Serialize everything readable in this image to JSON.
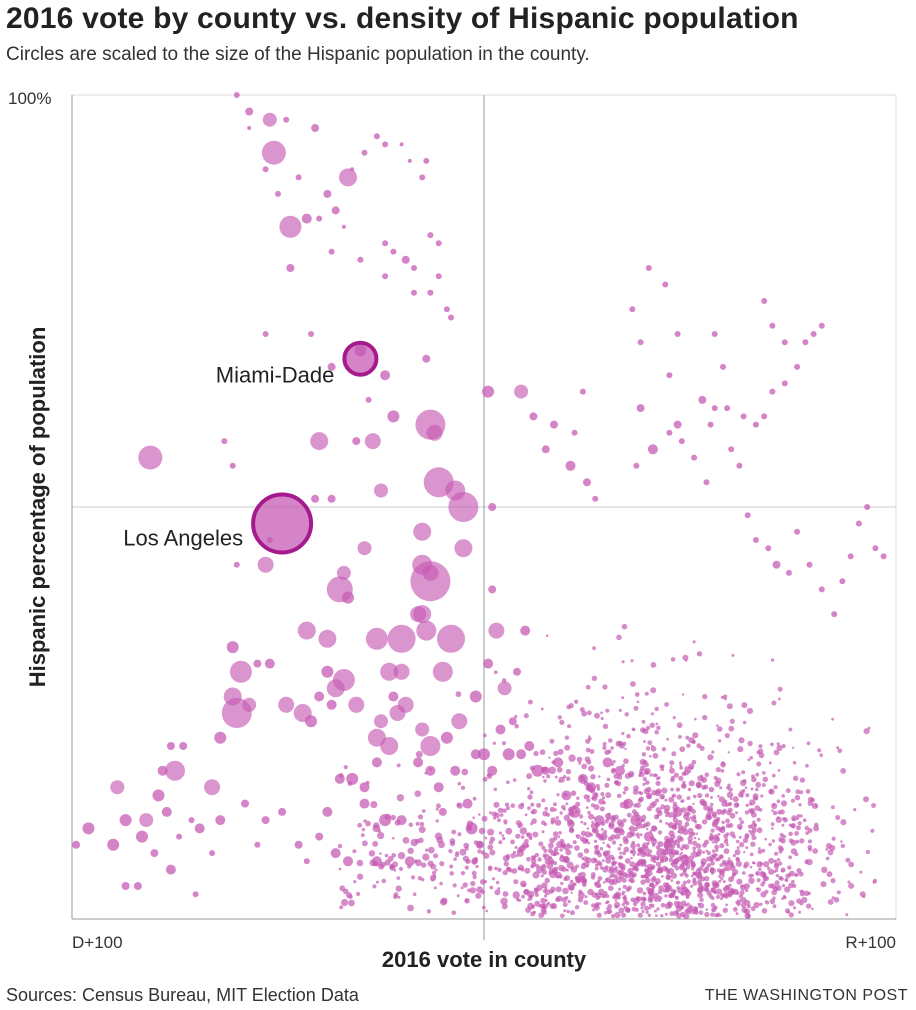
{
  "header": {
    "title": "2016 vote by county vs. density of Hispanic population",
    "subtitle": "Circles are scaled to the size of the Hispanic population in the county."
  },
  "footer": {
    "source": "Sources: Census Bureau, MIT Election Data",
    "credit": "THE WASHINGTON POST"
  },
  "colors": {
    "bubble": "#c65bb4",
    "highlight_stroke": "#a51a8c",
    "axis": "#999999",
    "grid": "#cccccc"
  },
  "chart_data": {
    "type": "scatter",
    "title": "2016 vote by county vs. density of Hispanic population",
    "subtitle": "Circles are scaled to the size of the Hispanic population in the county.",
    "xlabel": "2016 vote in county",
    "ylabel": "Hispanic percentage of population",
    "x_tick_labels": {
      "left": "D+100",
      "right": "R+100"
    },
    "y_tick_labels": {
      "top": "100%"
    },
    "xlim": [
      -100,
      100
    ],
    "ylim": [
      0,
      100
    ],
    "grid": true,
    "size_encoding": "Hispanic population (relative radius)",
    "annotations": [
      {
        "label": "Los Angeles",
        "x": -49,
        "y": 48,
        "r": 29
      },
      {
        "label": "Miami-Dade",
        "x": -30,
        "y": 68,
        "r": 16
      }
    ],
    "points": [
      [
        -60,
        100,
        3
      ],
      [
        -57,
        98,
        4
      ],
      [
        -52,
        97,
        7
      ],
      [
        -51,
        93,
        12
      ],
      [
        -41,
        96,
        4
      ],
      [
        -33,
        90,
        9
      ],
      [
        -57,
        96,
        2
      ],
      [
        -47,
        84,
        11
      ],
      [
        -43,
        85,
        5
      ],
      [
        -47,
        79,
        4
      ],
      [
        -37,
        81,
        3
      ],
      [
        -24,
        82,
        3
      ],
      [
        -22,
        81,
        3
      ],
      [
        -17,
        76,
        3
      ],
      [
        -30,
        69,
        6
      ],
      [
        -37,
        67,
        4
      ],
      [
        -8,
        73,
        3
      ],
      [
        -42,
        71,
        3
      ],
      [
        -53,
        71,
        3
      ],
      [
        -22,
        61,
        6
      ],
      [
        -24,
        66,
        5
      ],
      [
        -28,
        63,
        3
      ],
      [
        -14,
        68,
        4
      ],
      [
        -31,
        58,
        4
      ],
      [
        -40,
        58,
        9
      ],
      [
        -27,
        58,
        8
      ],
      [
        -13,
        60,
        15
      ],
      [
        -12,
        59,
        8
      ],
      [
        -81,
        56,
        12
      ],
      [
        -63,
        58,
        3
      ],
      [
        -61,
        55,
        3
      ],
      [
        -25,
        52,
        7
      ],
      [
        -41,
        51,
        4
      ],
      [
        -11,
        53,
        15
      ],
      [
        -7,
        52,
        10
      ],
      [
        -37,
        51,
        4
      ],
      [
        -15,
        47,
        9
      ],
      [
        -5,
        50,
        15
      ],
      [
        -52,
        46,
        3
      ],
      [
        -5,
        45,
        9
      ],
      [
        -29,
        45,
        7
      ],
      [
        -60,
        43,
        3
      ],
      [
        -53,
        43,
        8
      ],
      [
        -13,
        42,
        8
      ],
      [
        -13,
        41,
        20
      ],
      [
        -15,
        43,
        10
      ],
      [
        -35,
        40,
        13
      ],
      [
        -34,
        42,
        7
      ],
      [
        -33,
        39,
        6
      ],
      [
        -15,
        37,
        9
      ],
      [
        -16,
        37,
        8
      ],
      [
        -14,
        35,
        10
      ],
      [
        -26,
        34,
        11
      ],
      [
        -20,
        34,
        14
      ],
      [
        -38,
        34,
        9
      ],
      [
        -43,
        35,
        9
      ],
      [
        -8,
        34,
        14
      ],
      [
        -10,
        30,
        10
      ],
      [
        -20,
        30,
        8
      ],
      [
        -23,
        30,
        9
      ],
      [
        -38,
        30,
        6
      ],
      [
        -36,
        28,
        9
      ],
      [
        -34,
        29,
        11
      ],
      [
        -19,
        26,
        8
      ],
      [
        -22,
        27,
        5
      ],
      [
        -52,
        31,
        5
      ],
      [
        -55,
        31,
        4
      ],
      [
        -61,
        33,
        6
      ],
      [
        -59,
        30,
        11
      ],
      [
        -61,
        27,
        9
      ],
      [
        -60,
        25,
        15
      ],
      [
        -57,
        26,
        7
      ],
      [
        -48,
        26,
        8
      ],
      [
        -44,
        25,
        9
      ],
      [
        -42,
        24,
        6
      ],
      [
        -40,
        27,
        5
      ],
      [
        -37,
        26,
        5
      ],
      [
        -31,
        26,
        8
      ],
      [
        -26,
        22,
        9
      ],
      [
        -25,
        24,
        7
      ],
      [
        -23,
        21,
        9
      ],
      [
        -21,
        25,
        8
      ],
      [
        -15,
        23,
        7
      ],
      [
        -13,
        21,
        10
      ],
      [
        -9,
        22,
        6
      ],
      [
        -6,
        24,
        8
      ],
      [
        -2,
        27,
        6
      ],
      [
        -64,
        22,
        6
      ],
      [
        -73,
        21,
        4
      ],
      [
        -76,
        21,
        4
      ],
      [
        -75,
        18,
        10
      ],
      [
        -78,
        18,
        5
      ],
      [
        -66,
        16,
        8
      ],
      [
        -79,
        15,
        6
      ],
      [
        -77,
        13,
        5
      ],
      [
        -82,
        12,
        7
      ],
      [
        -89,
        16,
        7
      ],
      [
        -87,
        12,
        6
      ],
      [
        -83,
        10,
        6
      ],
      [
        -90,
        9,
        6
      ],
      [
        -96,
        11,
        6
      ],
      [
        -99,
        9,
        4
      ],
      [
        -80,
        8,
        4
      ],
      [
        -87,
        4,
        4
      ],
      [
        -84,
        4,
        4
      ],
      [
        -76,
        6,
        5
      ],
      [
        -70,
        3,
        3
      ],
      [
        -66,
        8,
        3
      ],
      [
        -74,
        10,
        3
      ],
      [
        -71,
        12,
        3
      ],
      [
        -69,
        11,
        5
      ],
      [
        -64,
        12,
        5
      ],
      [
        -58,
        14,
        4
      ],
      [
        -53,
        12,
        4
      ],
      [
        -49,
        13,
        4
      ],
      [
        -55,
        9,
        3
      ],
      [
        -45,
        9,
        4
      ],
      [
        -43,
        7,
        3
      ],
      [
        -36,
        8,
        5
      ],
      [
        -33,
        7,
        5
      ],
      [
        -26,
        7,
        5
      ],
      [
        -18,
        7,
        5
      ],
      [
        -20,
        12,
        5
      ],
      [
        -24,
        12,
        6
      ],
      [
        -29,
        14,
        5
      ],
      [
        -32,
        17,
        6
      ],
      [
        -35,
        17,
        5
      ],
      [
        -38,
        13,
        5
      ],
      [
        -40,
        10,
        4
      ],
      [
        -26,
        19,
        5
      ],
      [
        -29,
        16,
        5
      ],
      [
        -16,
        19,
        5
      ],
      [
        -13,
        18,
        5
      ],
      [
        -11,
        16,
        5
      ],
      [
        -10,
        13,
        4
      ],
      [
        -7,
        18,
        5
      ],
      [
        -4,
        14,
        5
      ],
      [
        -3,
        11,
        6
      ],
      [
        -1,
        9,
        4
      ],
      [
        -2,
        20,
        5
      ],
      [
        0,
        20,
        6
      ],
      [
        2,
        18,
        5
      ],
      [
        4,
        23,
        5
      ],
      [
        6,
        20,
        6
      ],
      [
        9,
        20,
        5
      ],
      [
        11,
        21,
        5
      ],
      [
        13,
        18,
        6
      ],
      [
        15,
        18,
        4
      ],
      [
        18,
        19,
        5
      ],
      [
        20,
        15,
        5
      ],
      [
        22,
        13,
        6
      ],
      [
        24,
        17,
        5
      ],
      [
        26,
        16,
        5
      ],
      [
        28,
        12,
        5
      ],
      [
        29,
        10,
        4
      ],
      [
        30,
        19,
        5
      ],
      [
        33,
        18,
        5
      ],
      [
        35,
        14,
        5
      ],
      [
        37,
        12,
        6
      ],
      [
        40,
        10,
        5
      ],
      [
        43,
        8,
        5
      ],
      [
        45,
        9,
        6
      ],
      [
        47,
        13,
        5
      ],
      [
        3,
        35,
        8
      ],
      [
        5,
        28,
        7
      ],
      [
        8,
        30,
        4
      ],
      [
        10,
        35,
        5
      ],
      [
        1,
        31,
        5
      ],
      [
        7,
        24,
        4
      ],
      [
        2,
        40,
        4
      ],
      [
        1,
        64,
        6
      ],
      [
        2,
        50,
        4
      ],
      [
        9,
        64,
        7
      ],
      [
        12,
        61,
        4
      ],
      [
        15,
        57,
        4
      ],
      [
        17,
        60,
        4
      ],
      [
        21,
        55,
        5
      ],
      [
        25,
        53,
        4
      ],
      [
        27,
        51,
        3
      ],
      [
        22,
        59,
        3
      ],
      [
        24,
        64,
        3
      ],
      [
        37,
        55,
        3
      ],
      [
        38,
        62,
        4
      ],
      [
        41,
        57,
        5
      ],
      [
        45,
        59,
        3
      ],
      [
        48,
        58,
        3
      ],
      [
        51,
        56,
        3
      ],
      [
        54,
        53,
        3
      ],
      [
        47,
        60,
        4
      ],
      [
        53,
        63,
        4
      ],
      [
        55,
        60,
        3
      ],
      [
        60,
        57,
        3
      ],
      [
        62,
        55,
        3
      ],
      [
        64,
        49,
        3
      ],
      [
        66,
        46,
        3
      ],
      [
        69,
        45,
        3
      ],
      [
        71,
        43,
        4
      ],
      [
        74,
        42,
        3
      ],
      [
        76,
        47,
        3
      ],
      [
        79,
        43,
        3
      ],
      [
        82,
        40,
        3
      ],
      [
        85,
        37,
        3
      ],
      [
        87,
        41,
        3
      ],
      [
        89,
        44,
        3
      ],
      [
        91,
        48,
        3
      ],
      [
        93,
        50,
        3
      ],
      [
        95,
        45,
        3
      ],
      [
        97,
        44,
        3
      ],
      [
        56,
        62,
        3
      ],
      [
        59,
        62,
        3
      ],
      [
        63,
        61,
        3
      ],
      [
        66,
        60,
        3
      ],
      [
        68,
        61,
        3
      ],
      [
        70,
        64,
        3
      ],
      [
        73,
        65,
        3
      ],
      [
        76,
        67,
        3
      ],
      [
        78,
        70,
        3
      ],
      [
        80,
        71,
        3
      ],
      [
        82,
        72,
        3
      ],
      [
        68,
        75,
        3
      ],
      [
        70,
        72,
        3
      ],
      [
        73,
        70,
        3
      ],
      [
        56,
        71,
        3
      ],
      [
        58,
        67,
        3
      ],
      [
        40,
        79,
        3
      ],
      [
        44,
        77,
        3
      ],
      [
        47,
        71,
        3
      ],
      [
        45,
        66,
        3
      ],
      [
        36,
        74,
        3
      ],
      [
        38,
        70,
        3
      ],
      [
        -40,
        85,
        3
      ],
      [
        -38,
        88,
        4
      ],
      [
        -36,
        86,
        4
      ],
      [
        -34,
        84,
        2
      ],
      [
        -45,
        90,
        3
      ],
      [
        -30,
        80,
        3
      ],
      [
        -24,
        78,
        3
      ],
      [
        -19,
        80,
        4
      ],
      [
        -17,
        79,
        3
      ],
      [
        -13,
        76,
        3
      ],
      [
        -9,
        74,
        3
      ],
      [
        -11,
        78,
        3
      ],
      [
        -13,
        83,
        3
      ],
      [
        -11,
        82,
        3
      ],
      [
        -50,
        88,
        3
      ],
      [
        -53,
        91,
        3
      ],
      [
        -48,
        97,
        3
      ],
      [
        -20,
        94,
        2
      ],
      [
        -18,
        92,
        2
      ],
      [
        -26,
        95,
        3
      ],
      [
        -24,
        94,
        3
      ],
      [
        -29,
        93,
        3
      ],
      [
        -32,
        91,
        2
      ],
      [
        -14,
        92,
        3
      ],
      [
        -15,
        90,
        3
      ]
    ]
  }
}
